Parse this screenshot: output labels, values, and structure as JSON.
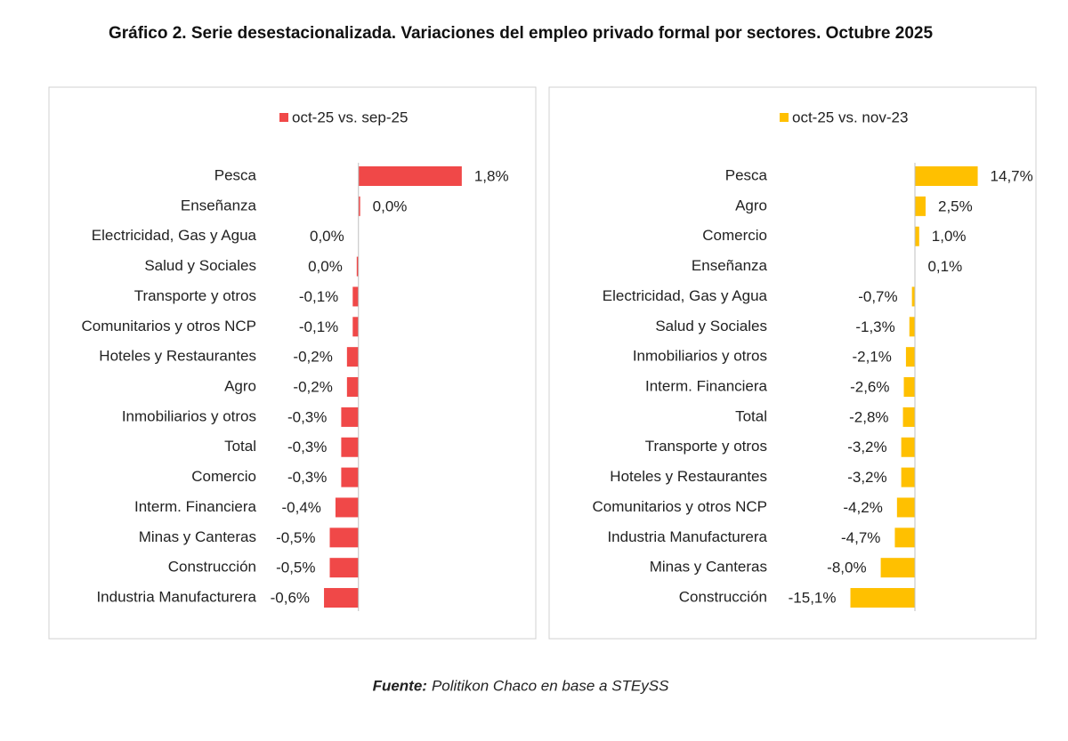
{
  "title": "Gráfico 2. Serie desestacionalizada. Variaciones del empleo privado formal por sectores. Octubre 2025",
  "source_label": "Fuente:",
  "source": "Politikon Chaco en base a STEySS",
  "chart_data": [
    {
      "type": "bar",
      "orientation": "horizontal",
      "categories": [
        "Pesca",
        "Enseñanza",
        "Electricidad, Gas y Agua",
        "Salud y Sociales",
        "Transporte y otros",
        "Comunitarios y otros NCP",
        "Hoteles y Restaurantes",
        "Agro",
        "Inmobiliarios y otros",
        "Total",
        "Comercio",
        "Interm. Financiera",
        "Minas y Canteras",
        "Construcción",
        "Industria Manufacturera"
      ],
      "series": [
        {
          "name": "oct-25 vs. sep-25",
          "color": "#f04848",
          "values": [
            1.8,
            0.03,
            0,
            -0.03,
            -0.1,
            -0.1,
            -0.2,
            -0.2,
            -0.3,
            -0.3,
            -0.3,
            -0.4,
            -0.5,
            -0.5,
            -0.6
          ],
          "value_labels": [
            "1,8%",
            "0,0%",
            "0,0%",
            "0,0%",
            "-0,1%",
            "-0,1%",
            "-0,2%",
            "-0,2%",
            "-0,3%",
            "-0,3%",
            "-0,3%",
            "-0,4%",
            "-0,5%",
            "-0,5%",
            "-0,6%"
          ]
        }
      ],
      "xlim": [
        -1.5,
        2.5
      ]
    },
    {
      "type": "bar",
      "orientation": "horizontal",
      "categories": [
        "Pesca",
        "Agro",
        "Comercio",
        "Enseñanza",
        "Electricidad, Gas y Agua",
        "Salud y Sociales",
        "Inmobiliarios y otros",
        "Interm. Financiera",
        "Total",
        "Transporte y otros",
        "Hoteles y Restaurantes",
        "Comunitarios y otros NCP",
        "Industria Manufacturera",
        "Minas y Canteras",
        "Construcción"
      ],
      "series": [
        {
          "name": "oct-25 vs. nov-23",
          "color": "#ffc000",
          "values": [
            14.7,
            2.5,
            1.0,
            0.1,
            -0.7,
            -1.3,
            -2.1,
            -2.6,
            -2.8,
            -3.2,
            -3.2,
            -4.2,
            -4.7,
            -8.0,
            -15.1
          ],
          "value_labels": [
            "14,7%",
            "2,5%",
            "1,0%",
            "0,1%",
            "-0,7%",
            "-1,3%",
            "-2,1%",
            "-2,6%",
            "-2,8%",
            "-3,2%",
            "-3,2%",
            "-4,2%",
            "-4,7%",
            "-8,0%",
            "-15,1%"
          ]
        }
      ],
      "xlim": [
        -30,
        20
      ]
    }
  ]
}
